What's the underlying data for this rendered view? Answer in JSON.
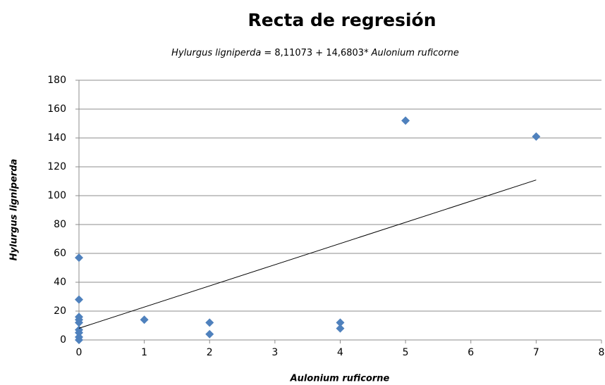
{
  "chart_data": {
    "type": "scatter",
    "title": "Recta de regresión",
    "subtitle": [
      {
        "text": "Hylurgus ligniperda",
        "italic": true
      },
      {
        "text": "= 8,11073 + 14,6803*",
        "italic": false
      },
      {
        "text": "Aulonium ruficorne",
        "italic": true
      }
    ],
    "x_label": "Aulonium ruficorne",
    "y_label": "Hylurgus ligniperda",
    "series": [
      {
        "color": "#4f81bd",
        "x": [
          0,
          0,
          0,
          0,
          0,
          0,
          0,
          0,
          0,
          1,
          2,
          2,
          4,
          4,
          5,
          7
        ],
        "values": [
          57,
          28,
          16,
          14,
          12,
          7,
          5,
          2,
          0,
          14,
          12,
          4,
          12,
          8,
          152,
          141
        ]
      }
    ],
    "trendline": {
      "x": [
        0,
        7
      ],
      "values": [
        8.11073,
        110.87283
      ],
      "color": "#000000"
    },
    "xlim": [
      0,
      8
    ],
    "xticks": [
      0,
      1,
      2,
      3,
      4,
      5,
      6,
      7,
      8
    ],
    "ylim": [
      0,
      180
    ],
    "yticks": [
      0,
      20,
      40,
      60,
      80,
      100,
      120,
      140,
      160,
      180
    ],
    "grid": true
  }
}
